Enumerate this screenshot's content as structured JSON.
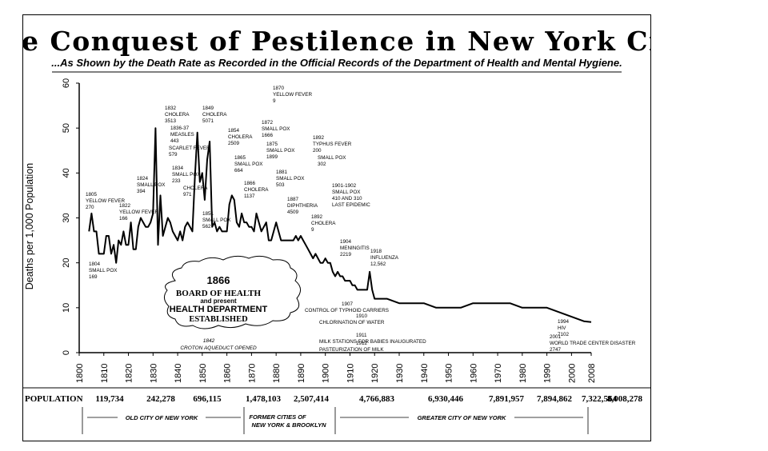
{
  "title": "The Conquest of Pestilence in New York City",
  "subtitle": "...As Shown by the Death Rate as Recorded in the Official Records of the Department of Health and Mental Hygiene.",
  "population": {
    "label": "POPULATION",
    "values": [
      "119,734",
      "242,278",
      "696,115",
      "1,478,103",
      "2,507,414",
      "4,766,883",
      "6,930,446",
      "7,891,957",
      "7,894,862",
      "7,322,564",
      "8,008,278"
    ]
  },
  "eras": [
    "OLD CITY OF NEW YORK",
    "FORMER CITIES OF",
    "NEW YORK & BROOKLYN",
    "GREATER CITY OF NEW YORK"
  ],
  "box": {
    "year": "1866",
    "line1": "BOARD OF HEALTH",
    "line2": "and present",
    "line3": "HEALTH DEPARTMENT",
    "line4": "ESTABLISHED",
    "under1": "1842",
    "under2": "CROTON AQUEDUCT OPENED"
  },
  "chart_data": {
    "type": "line",
    "title": "The Conquest of Pestilence in New York City",
    "ylabel": "Deaths per 1,000 Population",
    "xlabel": "",
    "xlim": [
      1800,
      2008
    ],
    "ylim": [
      0,
      60
    ],
    "grid": false,
    "x_ticks": [
      "1800",
      "1810",
      "1820",
      "1830",
      "1840",
      "1850",
      "1860",
      "1870",
      "1880",
      "1890",
      "1900",
      "1910",
      "1920",
      "1930",
      "1940",
      "1950",
      "1960",
      "1970",
      "1980",
      "1990",
      "2000",
      "2008"
    ],
    "y_ticks": [
      "0",
      "10",
      "20",
      "30",
      "40",
      "50",
      "60"
    ],
    "series": [
      {
        "x": [
          1804,
          1805,
          1806,
          1807,
          1808,
          1809,
          1810,
          1811,
          1812,
          1813,
          1814,
          1815,
          1816,
          1817,
          1818,
          1819,
          1820,
          1821,
          1822,
          1823,
          1824,
          1825,
          1826,
          1827,
          1828,
          1829,
          1830,
          1831,
          1832,
          1833,
          1834,
          1835,
          1836,
          1837,
          1838,
          1839,
          1840,
          1841,
          1842,
          1843,
          1844,
          1845,
          1846,
          1847,
          1848,
          1849,
          1850,
          1851,
          1852,
          1853,
          1854,
          1855,
          1856,
          1857,
          1858,
          1859,
          1860,
          1861,
          1862,
          1863,
          1864,
          1865,
          1866,
          1867,
          1868,
          1869,
          1870,
          1871,
          1872,
          1873,
          1874,
          1875,
          1876,
          1877,
          1878,
          1879,
          1880,
          1881,
          1882,
          1883,
          1884,
          1885,
          1886,
          1887,
          1888,
          1889,
          1890,
          1891,
          1892,
          1893,
          1894,
          1895,
          1896,
          1897,
          1898,
          1899,
          1900,
          1901,
          1902,
          1903,
          1904,
          1905,
          1906,
          1907,
          1908,
          1909,
          1910,
          1911,
          1912,
          1913,
          1914,
          1915,
          1916,
          1917,
          1918,
          1919,
          1920,
          1925,
          1930,
          1935,
          1940,
          1945,
          1950,
          1955,
          1960,
          1965,
          1970,
          1975,
          1980,
          1985,
          1990,
          1995,
          2000,
          2005,
          2008
        ],
        "y": [
          27,
          31,
          27,
          27,
          22,
          22,
          22,
          26,
          26,
          22,
          24,
          20,
          25,
          24,
          27,
          24,
          24,
          29,
          23,
          23,
          28,
          30,
          29,
          28,
          28,
          29,
          31,
          50,
          24,
          35,
          26,
          28,
          30,
          29,
          27,
          26,
          25,
          27,
          25,
          28,
          29,
          28,
          27,
          39,
          49,
          38,
          40,
          34,
          43,
          47,
          28,
          29,
          27,
          28,
          27,
          27,
          27,
          33,
          35,
          34,
          29,
          28,
          31,
          29,
          29,
          28,
          28,
          27,
          31,
          29,
          27,
          28,
          29,
          25,
          25,
          27,
          29,
          27,
          25,
          25,
          25,
          25,
          25,
          25,
          26,
          25,
          26,
          25,
          24,
          23,
          22,
          21,
          22,
          21,
          20,
          20,
          21,
          20,
          20,
          18,
          17,
          18,
          17,
          17,
          16,
          16,
          16,
          15,
          15,
          14,
          14,
          14,
          14,
          14,
          18,
          14,
          12,
          12,
          11,
          11,
          11,
          10,
          10,
          10,
          11,
          11,
          11,
          11,
          10,
          10,
          10,
          9,
          8,
          7,
          6.8
        ]
      }
    ],
    "annotations": [
      [
        "1804",
        "SMALL POX",
        "169"
      ],
      [
        "1805",
        "YELLOW FEVER",
        "270"
      ],
      [
        "1822",
        "YELLOW FEVER",
        "166"
      ],
      [
        "1824",
        "SMALL POX",
        "394"
      ],
      [
        "1832",
        "CHOLERA",
        "3513"
      ],
      [
        "1836-37",
        "MEASLES",
        "443"
      ],
      [
        "SCARLET FEVER",
        "579"
      ],
      [
        "1834",
        "SMALL POX",
        "233"
      ],
      [
        "CHOLERA",
        "971"
      ],
      [
        "1849",
        "CHOLERA",
        "5071"
      ],
      [
        "1851",
        "SMALL POX",
        "562"
      ],
      [
        "1854",
        "CHOLERA",
        "2509"
      ],
      [
        "1865",
        "SMALL POX",
        "664"
      ],
      [
        "1866",
        "CHOLERA",
        "1137"
      ],
      [
        "1870",
        "YELLOW FEVER",
        "9"
      ],
      [
        "1872",
        "SMALL POX",
        "1666"
      ],
      [
        "1875",
        "SMALL POX",
        "1899"
      ],
      [
        "1881",
        "SMALL POX",
        "503"
      ],
      [
        "1887",
        "DIPHTHERIA",
        "4509"
      ],
      [
        "1892",
        "CHOLERA",
        "9"
      ],
      [
        "1892",
        "TYPHUS FEVER",
        "200"
      ],
      [
        "SMALL POX",
        "302"
      ],
      [
        "1901-1902",
        "SMALL POX",
        "410 AND 310",
        "LAST EPIDEMIC"
      ],
      [
        "1904",
        "MENINGITIS",
        "2219"
      ],
      [
        "1918",
        "INFLUENZA",
        "12,562"
      ],
      [
        "1907",
        "CONTROL OF TYPHOID CARRIERS"
      ],
      [
        "1910",
        "CHLORINATION OF WATER"
      ],
      [
        "1911",
        "MILK STATIONS FOR BABIES INAUGURATED"
      ],
      [
        "1912",
        "PASTEURIZATION OF MILK"
      ],
      [
        "1994",
        "HIV",
        "7102"
      ],
      [
        "2001",
        "WORLD TRADE CENTER DISASTER",
        "2747"
      ]
    ]
  }
}
